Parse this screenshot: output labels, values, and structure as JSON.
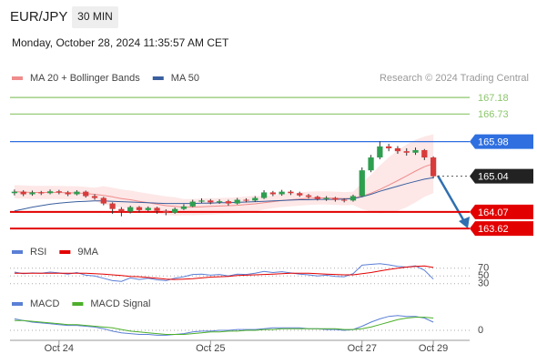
{
  "chart_data": [
    {
      "type": "candlestick",
      "title": "EUR/JPY",
      "interval": "30 MIN",
      "subtitle": "Monday, October 28, 2024 11:35:57 AM CET",
      "source": "Research © 2024 Trading Central",
      "categories": [
        null,
        null,
        null,
        null,
        null,
        "Oct 24",
        null,
        null,
        null,
        null,
        null,
        null,
        null,
        null,
        null,
        null,
        null,
        null,
        null,
        null,
        null,
        null,
        "Oct 25",
        null,
        null,
        null,
        null,
        null,
        null,
        null,
        null,
        null,
        null,
        null,
        null,
        null,
        null,
        null,
        null,
        "Oct 27",
        null,
        null,
        null,
        null,
        null,
        null,
        null,
        "Oct 29"
      ],
      "open": [
        164.58,
        164.62,
        164.55,
        164.6,
        164.58,
        164.63,
        164.6,
        164.55,
        164.62,
        164.5,
        164.45,
        164.3,
        164.15,
        164.08,
        164.2,
        164.12,
        164.18,
        164.1,
        164.05,
        164.15,
        164.22,
        164.35,
        164.38,
        164.33,
        164.36,
        164.3,
        164.4,
        164.38,
        164.45,
        164.6,
        164.55,
        164.62,
        164.58,
        164.52,
        164.48,
        164.42,
        164.45,
        164.4,
        164.38,
        164.5,
        165.2,
        165.55,
        165.85,
        165.8,
        165.72,
        165.68,
        165.75,
        165.55
      ],
      "high": [
        164.68,
        164.66,
        164.65,
        164.64,
        164.68,
        164.67,
        164.64,
        164.66,
        164.65,
        164.55,
        164.48,
        164.33,
        164.2,
        164.24,
        164.23,
        164.22,
        164.21,
        164.14,
        164.19,
        164.28,
        164.4,
        164.44,
        164.42,
        164.41,
        164.4,
        164.45,
        164.44,
        164.5,
        164.66,
        164.64,
        164.67,
        164.66,
        164.62,
        164.56,
        164.51,
        164.5,
        164.48,
        164.44,
        164.54,
        165.28,
        165.62,
        165.99,
        165.92,
        165.86,
        165.8,
        165.82,
        165.78,
        165.58
      ],
      "low": [
        164.52,
        164.5,
        164.51,
        164.53,
        164.55,
        164.55,
        164.5,
        164.52,
        164.46,
        164.4,
        164.25,
        164.02,
        163.95,
        164.03,
        164.05,
        164.08,
        164.02,
        163.98,
        164.02,
        164.12,
        164.2,
        164.31,
        164.28,
        164.29,
        164.24,
        164.27,
        164.33,
        164.34,
        164.42,
        164.5,
        164.51,
        164.53,
        164.48,
        164.43,
        164.38,
        164.37,
        164.35,
        164.33,
        164.35,
        164.48,
        165.15,
        165.5,
        165.72,
        165.65,
        165.6,
        165.62,
        165.48,
        164.98
      ],
      "close": [
        164.62,
        164.55,
        164.6,
        164.58,
        164.63,
        164.6,
        164.55,
        164.62,
        164.5,
        164.45,
        164.3,
        164.15,
        164.08,
        164.2,
        164.12,
        164.18,
        164.1,
        164.05,
        164.15,
        164.22,
        164.35,
        164.38,
        164.33,
        164.36,
        164.3,
        164.4,
        164.38,
        164.45,
        164.6,
        164.55,
        164.62,
        164.58,
        164.52,
        164.48,
        164.42,
        164.45,
        164.4,
        164.38,
        164.5,
        165.2,
        165.55,
        165.85,
        165.8,
        165.72,
        165.68,
        165.75,
        165.55,
        165.04
      ],
      "up_color": "#2e9e4f",
      "down_color": "#d93b3b",
      "series": [
        {
          "name": "MA 20 + Bollinger Bands",
          "color": "#f08c8c",
          "band_color": "#fde3e3",
          "values": [
            164.62,
            164.61,
            164.6,
            164.6,
            164.6,
            164.6,
            164.59,
            164.59,
            164.57,
            164.55,
            164.52,
            164.48,
            164.43,
            164.4,
            164.36,
            164.32,
            164.28,
            164.24,
            164.22,
            164.2,
            164.2,
            164.21,
            164.22,
            164.23,
            164.24,
            164.25,
            164.27,
            164.29,
            164.32,
            164.35,
            164.38,
            164.4,
            164.42,
            164.44,
            164.45,
            164.45,
            164.44,
            164.43,
            164.44,
            164.5,
            164.58,
            164.68,
            164.8,
            164.92,
            165.05,
            165.18,
            165.3,
            165.38
          ],
          "upper": [
            164.8,
            164.79,
            164.78,
            164.78,
            164.78,
            164.78,
            164.77,
            164.77,
            164.75,
            164.73,
            164.77,
            164.73,
            164.68,
            164.65,
            164.61,
            164.57,
            164.53,
            164.49,
            164.47,
            164.42,
            164.42,
            164.43,
            164.44,
            164.45,
            164.46,
            164.47,
            164.49,
            164.51,
            164.5,
            164.53,
            164.56,
            164.58,
            164.6,
            164.62,
            164.63,
            164.63,
            164.62,
            164.61,
            164.62,
            164.85,
            165.08,
            165.33,
            165.55,
            165.74,
            165.9,
            166.03,
            166.12,
            166.18
          ],
          "lower": [
            164.44,
            164.43,
            164.42,
            164.42,
            164.42,
            164.42,
            164.41,
            164.41,
            164.39,
            164.37,
            164.27,
            164.23,
            164.18,
            164.15,
            164.11,
            164.07,
            164.03,
            163.99,
            163.97,
            163.98,
            163.98,
            163.99,
            164.0,
            164.01,
            164.02,
            164.03,
            164.05,
            164.07,
            164.14,
            164.17,
            164.2,
            164.22,
            164.24,
            164.26,
            164.27,
            164.27,
            164.26,
            164.25,
            164.26,
            164.15,
            164.08,
            164.03,
            164.05,
            164.1,
            164.2,
            164.33,
            164.48,
            164.58
          ]
        },
        {
          "name": "MA 50",
          "color": "#3a5f9e",
          "values": [
            164.1,
            164.15,
            164.2,
            164.24,
            164.28,
            164.31,
            164.33,
            164.35,
            164.36,
            164.37,
            164.37,
            164.36,
            164.35,
            164.34,
            164.33,
            164.32,
            164.31,
            164.3,
            164.3,
            164.3,
            164.3,
            164.31,
            164.31,
            164.32,
            164.32,
            164.33,
            164.34,
            164.35,
            164.36,
            164.37,
            164.38,
            164.39,
            164.4,
            164.4,
            164.41,
            164.41,
            164.41,
            164.42,
            164.43,
            164.48,
            164.55,
            164.63,
            164.7,
            164.77,
            164.84,
            164.9,
            164.96,
            165.0
          ]
        }
      ],
      "levels": [
        {
          "value": 167.18,
          "color": "#8cc66b",
          "line": "solid",
          "label": "text"
        },
        {
          "value": 166.73,
          "color": "#8cc66b",
          "line": "solid",
          "label": "text"
        },
        {
          "value": 165.98,
          "color": "#2f6fe0",
          "line": "solid",
          "label": "box"
        },
        {
          "value": 165.04,
          "color": "#222222",
          "line": "dotted",
          "label": "box"
        },
        {
          "value": 164.07,
          "color": "#e30000",
          "line": "solid",
          "label": "box"
        },
        {
          "value": 163.62,
          "color": "#e30000",
          "line": "solid",
          "label": "box"
        }
      ],
      "ylim": [
        163.35,
        167.48
      ]
    },
    {
      "type": "line",
      "series": [
        {
          "name": "RSI",
          "color": "#5b7fd6",
          "values": [
            60,
            56,
            58,
            57,
            60,
            58,
            55,
            59,
            52,
            50,
            44,
            38,
            36,
            45,
            41,
            44,
            40,
            38,
            44,
            48,
            54,
            55,
            52,
            54,
            50,
            55,
            54,
            57,
            62,
            59,
            61,
            58,
            55,
            53,
            50,
            52,
            49,
            48,
            56,
            78,
            80,
            82,
            79,
            75,
            73,
            76,
            65,
            42
          ]
        },
        {
          "name": "9MA",
          "color": "#e30000",
          "values": [
            57,
            57,
            57,
            57,
            57,
            57,
            57,
            57,
            57,
            56,
            55,
            53,
            51,
            49,
            48,
            46,
            44,
            42,
            41,
            42,
            43,
            45,
            47,
            48,
            49,
            51,
            52,
            53,
            54,
            55,
            56,
            57,
            57,
            57,
            56,
            55,
            54,
            53,
            53,
            56,
            59,
            63,
            67,
            70,
            73,
            75,
            76,
            72
          ]
        }
      ],
      "ylim": [
        20,
        86
      ],
      "yticks": [
        30,
        50,
        70
      ]
    },
    {
      "type": "line",
      "series": [
        {
          "name": "MACD",
          "color": "#5b7fd6",
          "values": [
            0.14,
            0.12,
            0.1,
            0.09,
            0.08,
            0.07,
            0.06,
            0.06,
            0.05,
            0.04,
            0.02,
            -0.01,
            -0.03,
            -0.04,
            -0.05,
            -0.05,
            -0.06,
            -0.06,
            -0.05,
            -0.04,
            -0.02,
            -0.01,
            -0.01,
            0.0,
            0.0,
            0.01,
            0.01,
            0.01,
            0.02,
            0.03,
            0.03,
            0.03,
            0.03,
            0.02,
            0.02,
            0.01,
            0.01,
            0.0,
            0.01,
            0.05,
            0.1,
            0.14,
            0.17,
            0.18,
            0.17,
            0.17,
            0.15,
            0.1
          ]
        },
        {
          "name": "MACD Signal",
          "color": "#4caf2a",
          "values": [
            0.12,
            0.12,
            0.11,
            0.1,
            0.09,
            0.08,
            0.07,
            0.07,
            0.06,
            0.05,
            0.04,
            0.03,
            0.01,
            -0.01,
            -0.02,
            -0.03,
            -0.04,
            -0.05,
            -0.05,
            -0.05,
            -0.04,
            -0.03,
            -0.02,
            -0.02,
            -0.01,
            -0.01,
            0.0,
            0.0,
            0.01,
            0.01,
            0.02,
            0.02,
            0.02,
            0.02,
            0.02,
            0.02,
            0.02,
            0.01,
            0.01,
            0.02,
            0.04,
            0.07,
            0.1,
            0.13,
            0.15,
            0.16,
            0.16,
            0.15
          ]
        }
      ],
      "ylim": [
        -0.1,
        0.2
      ],
      "yticks": [
        0
      ]
    }
  ]
}
